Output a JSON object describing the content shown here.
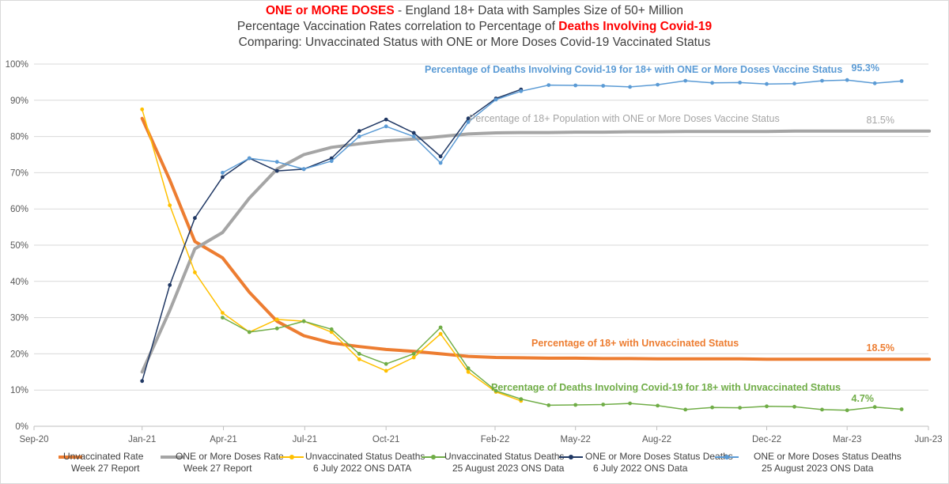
{
  "title": {
    "line1_strong": "ONE or MORE DOSES",
    "line1_rest": " - England 18+ Data with Samples Size of 50+ Million",
    "line2_rest": "Percentage Vaccination Rates correlation to Percentage of ",
    "line2_strong": "Deaths Involving Covid-19",
    "line3": "Comparing: Unvaccinated Status with ONE or More Doses Covid-19 Vaccinated Status"
  },
  "chart_data": {
    "type": "line",
    "y_ticks": [
      "0%",
      "10%",
      "20%",
      "30%",
      "40%",
      "50%",
      "60%",
      "70%",
      "80%",
      "90%",
      "100%"
    ],
    "ylim": [
      0,
      100
    ],
    "x_ticks": [
      "Sep-20",
      "Jan-21",
      "Apr-21",
      "Jul-21",
      "Oct-21",
      "Feb-22",
      "May-22",
      "Aug-22",
      "Dec-22",
      "Mar-23",
      "Jun-23"
    ],
    "x_tick_dates": [
      "2020-09-01",
      "2020-12-31",
      "2021-04-01",
      "2021-07-01",
      "2021-09-30",
      "2022-01-30",
      "2022-04-30",
      "2022-07-30",
      "2022-11-30",
      "2023-02-28",
      "2023-05-30"
    ],
    "grid": true,
    "series": [
      {
        "name": "Unvaccinated Rate",
        "name2": "Week 27 Report",
        "color": "#ed7d31",
        "width": 4,
        "markers": false,
        "points": [
          [
            "2020-12-31",
            85
          ],
          [
            "2021-01-31",
            68
          ],
          [
            "2021-02-28",
            51
          ],
          [
            "2021-03-31",
            46.5
          ],
          [
            "2021-04-30",
            37
          ],
          [
            "2021-05-31",
            29
          ],
          [
            "2021-06-30",
            25
          ],
          [
            "2021-07-31",
            23
          ],
          [
            "2021-08-31",
            22
          ],
          [
            "2021-09-30",
            21.2
          ],
          [
            "2021-10-31",
            20.7
          ],
          [
            "2021-11-30",
            20
          ],
          [
            "2021-12-31",
            19.3
          ],
          [
            "2022-01-31",
            19
          ],
          [
            "2022-02-28",
            18.9
          ],
          [
            "2022-03-31",
            18.8
          ],
          [
            "2022-04-30",
            18.8
          ],
          [
            "2022-05-31",
            18.7
          ],
          [
            "2022-06-30",
            18.7
          ],
          [
            "2022-07-31",
            18.6
          ],
          [
            "2022-08-31",
            18.6
          ],
          [
            "2022-09-30",
            18.6
          ],
          [
            "2022-10-31",
            18.6
          ],
          [
            "2022-11-30",
            18.5
          ],
          [
            "2022-12-31",
            18.5
          ],
          [
            "2023-01-31",
            18.5
          ],
          [
            "2023-02-28",
            18.5
          ],
          [
            "2023-03-31",
            18.5
          ],
          [
            "2023-04-30",
            18.5
          ],
          [
            "2023-05-31",
            18.5
          ]
        ]
      },
      {
        "name": "ONE or More Doses Rate",
        "name2": "Week 27 Report",
        "color": "#a5a5a5",
        "width": 4,
        "markers": false,
        "points": [
          [
            "2020-12-31",
            15
          ],
          [
            "2021-01-31",
            32
          ],
          [
            "2021-02-28",
            49
          ],
          [
            "2021-03-31",
            53.5
          ],
          [
            "2021-04-30",
            63
          ],
          [
            "2021-05-31",
            71
          ],
          [
            "2021-06-30",
            75
          ],
          [
            "2021-07-31",
            77
          ],
          [
            "2021-08-31",
            78
          ],
          [
            "2021-09-30",
            78.8
          ],
          [
            "2021-10-31",
            79.3
          ],
          [
            "2021-11-30",
            80
          ],
          [
            "2021-12-31",
            80.7
          ],
          [
            "2022-01-31",
            81
          ],
          [
            "2022-02-28",
            81.1
          ],
          [
            "2022-03-31",
            81.1
          ],
          [
            "2022-04-30",
            81.2
          ],
          [
            "2022-05-31",
            81.2
          ],
          [
            "2022-06-30",
            81.3
          ],
          [
            "2022-07-31",
            81.3
          ],
          [
            "2022-08-31",
            81.4
          ],
          [
            "2022-09-30",
            81.4
          ],
          [
            "2022-10-31",
            81.4
          ],
          [
            "2022-11-30",
            81.4
          ],
          [
            "2022-12-31",
            81.5
          ],
          [
            "2023-01-31",
            81.5
          ],
          [
            "2023-02-28",
            81.5
          ],
          [
            "2023-03-31",
            81.5
          ],
          [
            "2023-04-30",
            81.5
          ],
          [
            "2023-05-31",
            81.5
          ]
        ]
      },
      {
        "name": "Unvaccinated Status Deaths",
        "name2": "6 July 2022 ONS DATA",
        "color": "#ffc000",
        "width": 1.5,
        "markers": true,
        "points": [
          [
            "2020-12-31",
            87.5
          ],
          [
            "2021-01-31",
            61
          ],
          [
            "2021-02-28",
            42.5
          ],
          [
            "2021-03-31",
            31.3
          ],
          [
            "2021-04-30",
            26
          ],
          [
            "2021-05-31",
            29.5
          ],
          [
            "2021-06-30",
            29
          ],
          [
            "2021-07-31",
            26
          ],
          [
            "2021-08-31",
            18.5
          ],
          [
            "2021-09-30",
            15.3
          ],
          [
            "2021-10-31",
            19
          ],
          [
            "2021-11-30",
            25.5
          ],
          [
            "2021-12-31",
            15
          ],
          [
            "2022-01-31",
            9.5
          ],
          [
            "2022-02-28",
            7
          ]
        ]
      },
      {
        "name": "Unvaccinated Status Deaths",
        "name2": "25 August 2023 ONS Data",
        "color": "#70ad47",
        "width": 1.5,
        "markers": true,
        "points": [
          [
            "2021-03-31",
            30
          ],
          [
            "2021-04-30",
            26
          ],
          [
            "2021-05-31",
            27
          ],
          [
            "2021-06-30",
            29
          ],
          [
            "2021-07-31",
            26.8
          ],
          [
            "2021-08-31",
            20
          ],
          [
            "2021-09-30",
            17.2
          ],
          [
            "2021-10-31",
            20
          ],
          [
            "2021-11-30",
            27.3
          ],
          [
            "2021-12-31",
            16
          ],
          [
            "2022-01-31",
            9.8
          ],
          [
            "2022-02-28",
            7.5
          ],
          [
            "2022-03-31",
            5.8
          ],
          [
            "2022-04-30",
            5.9
          ],
          [
            "2022-05-31",
            6
          ],
          [
            "2022-06-30",
            6.3
          ],
          [
            "2022-07-31",
            5.7
          ],
          [
            "2022-08-31",
            4.6
          ],
          [
            "2022-09-30",
            5.2
          ],
          [
            "2022-10-31",
            5.1
          ],
          [
            "2022-11-30",
            5.5
          ],
          [
            "2022-12-31",
            5.4
          ],
          [
            "2023-01-31",
            4.6
          ],
          [
            "2023-02-28",
            4.4
          ],
          [
            "2023-03-31",
            5.3
          ],
          [
            "2023-04-30",
            4.7
          ]
        ]
      },
      {
        "name": "ONE or More Doses Status Deaths",
        "name2": "6 July 2022 ONS Data",
        "color": "#203864",
        "width": 1.5,
        "markers": true,
        "points": [
          [
            "2020-12-31",
            12.5
          ],
          [
            "2021-01-31",
            39
          ],
          [
            "2021-02-28",
            57.5
          ],
          [
            "2021-03-31",
            68.8
          ],
          [
            "2021-04-30",
            74
          ],
          [
            "2021-05-31",
            70.5
          ],
          [
            "2021-06-30",
            71
          ],
          [
            "2021-07-31",
            74
          ],
          [
            "2021-08-31",
            81.5
          ],
          [
            "2021-09-30",
            84.7
          ],
          [
            "2021-10-31",
            81
          ],
          [
            "2021-11-30",
            74.5
          ],
          [
            "2021-12-31",
            85
          ],
          [
            "2022-01-31",
            90.5
          ],
          [
            "2022-02-28",
            93
          ]
        ]
      },
      {
        "name": "ONE or More Doses Status Deaths",
        "name2": "25 August 2023 ONS Data",
        "color": "#5b9bd5",
        "width": 1.5,
        "markers": true,
        "points": [
          [
            "2021-03-31",
            70
          ],
          [
            "2021-04-30",
            74
          ],
          [
            "2021-05-31",
            73
          ],
          [
            "2021-06-30",
            71
          ],
          [
            "2021-07-31",
            73.2
          ],
          [
            "2021-08-31",
            80
          ],
          [
            "2021-09-30",
            82.8
          ],
          [
            "2021-10-31",
            80
          ],
          [
            "2021-11-30",
            72.7
          ],
          [
            "2021-12-31",
            84
          ],
          [
            "2022-01-31",
            90.2
          ],
          [
            "2022-02-28",
            92.5
          ],
          [
            "2022-03-31",
            94.2
          ],
          [
            "2022-04-30",
            94.1
          ],
          [
            "2022-05-31",
            94
          ],
          [
            "2022-06-30",
            93.7
          ],
          [
            "2022-07-31",
            94.3
          ],
          [
            "2022-08-31",
            95.4
          ],
          [
            "2022-09-30",
            94.8
          ],
          [
            "2022-10-31",
            94.9
          ],
          [
            "2022-11-30",
            94.5
          ],
          [
            "2022-12-31",
            94.6
          ],
          [
            "2023-01-31",
            95.4
          ],
          [
            "2023-02-28",
            95.6
          ],
          [
            "2023-03-31",
            94.7
          ],
          [
            "2023-04-30",
            95.3
          ]
        ]
      }
    ],
    "annotations": [
      {
        "text": "Percentage of Deaths Involving Covid-19 for 18+ with ONE or More Doses Vaccine Status",
        "color": "#5b9bd5",
        "bold": true
      },
      {
        "text": "95.3%",
        "color": "#5b9bd5",
        "bold": true
      },
      {
        "text": "Percentage of 18+ Population  with ONE or More Doses Vaccine Status",
        "color": "#a5a5a5",
        "bold": false
      },
      {
        "text": "81.5%",
        "color": "#a5a5a5",
        "bold": false
      },
      {
        "text": "Percentage of 18+ with Unvaccinated Status",
        "color": "#ed7d31",
        "bold": true
      },
      {
        "text": "18.5%",
        "color": "#ed7d31",
        "bold": true
      },
      {
        "text": "Percentage of Deaths Involving Covid-19 for 18+ with Unvaccinated Status",
        "color": "#70ad47",
        "bold": true
      },
      {
        "text": "4.7%",
        "color": "#70ad47",
        "bold": true
      }
    ]
  }
}
